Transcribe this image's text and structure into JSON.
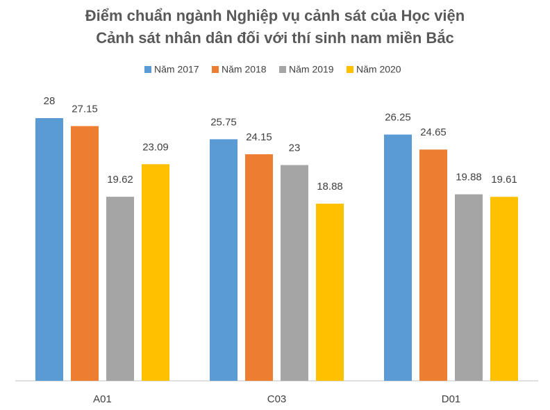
{
  "chart_data": {
    "type": "bar",
    "title_lines": [
      "Điểm chuẩn ngành Nghiệp vụ cảnh sát của Học viện",
      "Cảnh sát nhân dân đối với thí sinh nam miền Bắc"
    ],
    "categories": [
      "A01",
      "C03",
      "D01"
    ],
    "series": [
      {
        "name": "Năm 2017",
        "color": "#5b9bd5",
        "values": [
          28,
          25.75,
          26.25
        ]
      },
      {
        "name": "Năm 2018",
        "color": "#ed7d31",
        "values": [
          27.15,
          24.15,
          24.65
        ]
      },
      {
        "name": "Năm 2019",
        "color": "#a5a5a5",
        "values": [
          19.62,
          23,
          19.88
        ]
      },
      {
        "name": "Năm 2020",
        "color": "#ffc000",
        "values": [
          23.09,
          18.88,
          19.61
        ]
      }
    ],
    "legend": "top"
  }
}
